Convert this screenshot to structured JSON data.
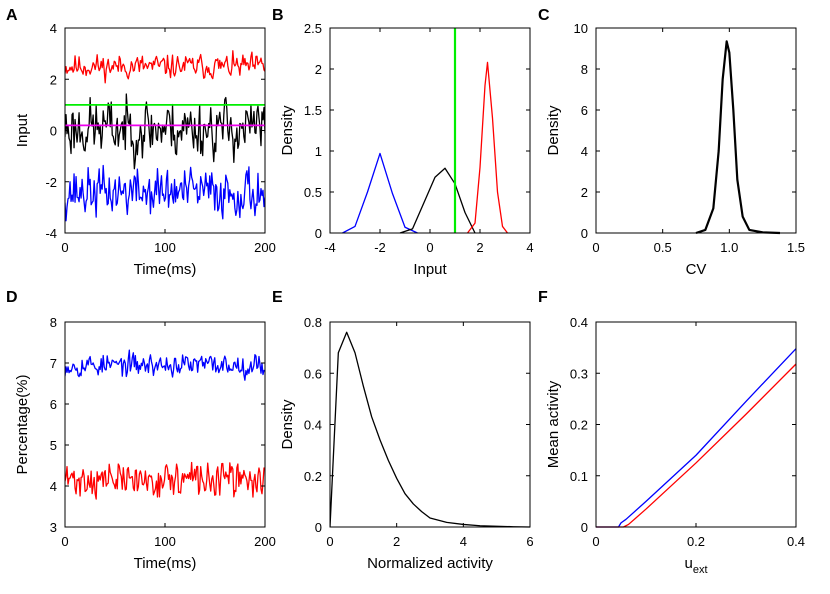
{
  "chart_data": [
    {
      "panel": "A",
      "type": "line",
      "xlabel": "Time(ms)",
      "ylabel": "Input",
      "xlim": [
        0,
        200
      ],
      "ylim": [
        -4,
        4
      ],
      "xticks": [
        0,
        100,
        200
      ],
      "yticks": [
        -4,
        -2,
        0,
        2,
        4
      ],
      "series": [
        {
          "name": "red trace",
          "color": "#ff0000",
          "mean": 2.5,
          "amp": 0.22,
          "seed": 11
        },
        {
          "name": "black trace",
          "color": "#000000",
          "mean": 0.1,
          "amp": 0.55,
          "seed": 23
        },
        {
          "name": "blue trace",
          "color": "#0000ff",
          "mean": -2.4,
          "amp": 0.45,
          "seed": 37
        }
      ],
      "hlines": [
        {
          "name": "threshold",
          "y": 1.0,
          "color": "#00ee00"
        },
        {
          "name": "mean input",
          "y": 0.2,
          "color": "#ee00ee"
        }
      ]
    },
    {
      "panel": "B",
      "type": "line",
      "xlabel": "Input",
      "ylabel": "Density",
      "xlim": [
        -4,
        4
      ],
      "ylim": [
        0,
        2.5
      ],
      "xticks": [
        -4,
        -2,
        0,
        2,
        4
      ],
      "yticks": [
        0,
        0.5,
        1,
        1.5,
        2,
        2.5
      ],
      "series": [
        {
          "name": "blue density",
          "color": "#0000ff",
          "x": [
            -3.5,
            -3.0,
            -2.5,
            -2.0,
            -1.5,
            -1.0,
            -0.5
          ],
          "y": [
            0.0,
            0.08,
            0.5,
            0.97,
            0.48,
            0.07,
            0.0
          ]
        },
        {
          "name": "black density",
          "color": "#000000",
          "x": [
            -1.2,
            -0.7,
            -0.2,
            0.2,
            0.6,
            1.0,
            1.4,
            1.8
          ],
          "y": [
            0.0,
            0.05,
            0.4,
            0.68,
            0.79,
            0.6,
            0.25,
            0.0
          ]
        },
        {
          "name": "red density",
          "color": "#ff0000",
          "x": [
            1.5,
            1.8,
            2.0,
            2.2,
            2.3,
            2.5,
            2.7,
            2.9,
            3.1
          ],
          "y": [
            0.0,
            0.12,
            0.8,
            1.8,
            2.08,
            1.4,
            0.5,
            0.08,
            0.0
          ]
        }
      ],
      "vlines": [
        {
          "name": "threshold",
          "x": 1.0,
          "color": "#00ee00"
        }
      ]
    },
    {
      "panel": "C",
      "type": "line",
      "xlabel": "CV",
      "ylabel": "Density",
      "xlim": [
        0,
        1.5
      ],
      "ylim": [
        0,
        10
      ],
      "xticks": [
        0,
        0.5,
        1.0,
        1.5
      ],
      "xtick_labels": [
        "0",
        "0.5",
        "1.0",
        "1.5"
      ],
      "yticks": [
        0,
        2,
        4,
        6,
        8,
        10
      ],
      "series": [
        {
          "name": "CV density",
          "color": "#000000",
          "x": [
            0.75,
            0.82,
            0.88,
            0.92,
            0.95,
            0.98,
            1.0,
            1.03,
            1.06,
            1.1,
            1.15,
            1.25,
            1.38
          ],
          "y": [
            0.0,
            0.15,
            1.2,
            4.0,
            7.5,
            9.35,
            8.8,
            6.0,
            2.6,
            0.8,
            0.15,
            0.03,
            0.0
          ]
        }
      ]
    },
    {
      "panel": "D",
      "type": "line",
      "xlabel": "Time(ms)",
      "ylabel": "Percentage(%)",
      "xlim": [
        0,
        200
      ],
      "ylim": [
        3,
        8
      ],
      "xticks": [
        0,
        100,
        200
      ],
      "yticks": [
        3,
        4,
        5,
        6,
        7,
        8
      ],
      "series": [
        {
          "name": "blue trace",
          "color": "#0000ff",
          "mean": 6.95,
          "amp": 0.13,
          "seed": 53
        },
        {
          "name": "red trace",
          "color": "#ff0000",
          "mean": 4.15,
          "amp": 0.2,
          "seed": 71
        }
      ]
    },
    {
      "panel": "E",
      "type": "line",
      "xlabel": "Normalized activity",
      "ylabel": "Density",
      "xlim": [
        0,
        6
      ],
      "ylim": [
        0,
        0.8
      ],
      "xticks": [
        0,
        2,
        4,
        6
      ],
      "yticks": [
        0,
        0.2,
        0.4,
        0.6,
        0.8
      ],
      "series": [
        {
          "name": "activity density",
          "color": "#000000",
          "x": [
            0,
            0.25,
            0.5,
            0.75,
            1.0,
            1.25,
            1.5,
            1.75,
            2.0,
            2.25,
            2.5,
            2.75,
            3.0,
            3.5,
            4.0,
            4.5,
            5.0,
            5.5,
            6.0
          ],
          "y": [
            0.0,
            0.68,
            0.76,
            0.68,
            0.55,
            0.43,
            0.34,
            0.26,
            0.19,
            0.13,
            0.09,
            0.06,
            0.035,
            0.018,
            0.01,
            0.005,
            0.003,
            0.001,
            0.0
          ]
        }
      ]
    },
    {
      "panel": "F",
      "type": "line",
      "xlabel": "u",
      "xlabel_sub": "ext",
      "ylabel": "Mean activity",
      "xlim": [
        0,
        0.4
      ],
      "ylim": [
        0,
        0.4
      ],
      "xticks": [
        0,
        0.2,
        0.4
      ],
      "yticks": [
        0,
        0.1,
        0.2,
        0.3,
        0.4
      ],
      "series": [
        {
          "name": "blue curve",
          "color": "#0000ff",
          "x": [
            0,
            0.045,
            0.05,
            0.06,
            0.1,
            0.2,
            0.3,
            0.4
          ],
          "y": [
            0,
            0,
            0.008,
            0.015,
            0.05,
            0.14,
            0.245,
            0.348
          ]
        },
        {
          "name": "red curve",
          "color": "#ff0000",
          "x": [
            0,
            0.055,
            0.065,
            0.1,
            0.2,
            0.3,
            0.4
          ],
          "y": [
            0,
            0,
            0.005,
            0.035,
            0.125,
            0.22,
            0.318
          ]
        }
      ]
    }
  ]
}
